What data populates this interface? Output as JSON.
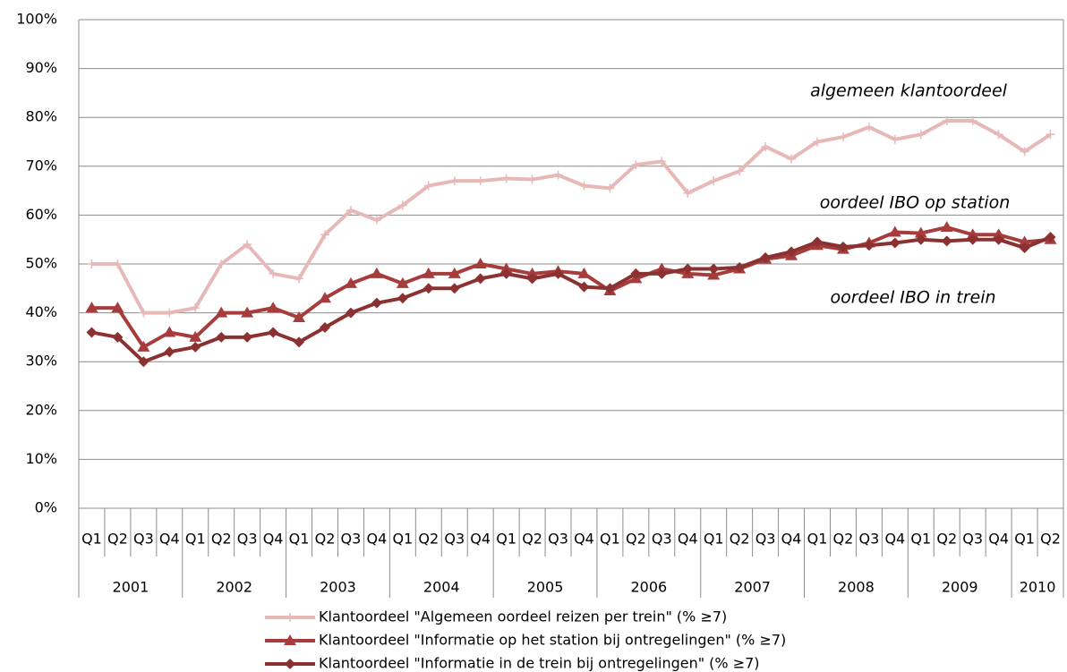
{
  "chart_data": {
    "type": "line",
    "category_groups": [
      {
        "label": "2001",
        "categories": [
          "Q1",
          "Q2",
          "Q3",
          "Q4"
        ]
      },
      {
        "label": "2002",
        "categories": [
          "Q1",
          "Q2",
          "Q3",
          "Q4"
        ]
      },
      {
        "label": "2003",
        "categories": [
          "Q1",
          "Q2",
          "Q3",
          "Q4"
        ]
      },
      {
        "label": "2004",
        "categories": [
          "Q1",
          "Q2",
          "Q3",
          "Q4"
        ]
      },
      {
        "label": "2005",
        "categories": [
          "Q1",
          "Q2",
          "Q3",
          "Q4"
        ]
      },
      {
        "label": "2006",
        "categories": [
          "Q1",
          "Q2",
          "Q3",
          "Q4"
        ]
      },
      {
        "label": "2007",
        "categories": [
          "Q1",
          "Q2",
          "Q3",
          "Q4"
        ]
      },
      {
        "label": "2008",
        "categories": [
          "Q1",
          "Q2",
          "Q3",
          "Q4"
        ]
      },
      {
        "label": "2009",
        "categories": [
          "Q1",
          "Q2",
          "Q3",
          "Q4"
        ]
      },
      {
        "label": "2010",
        "categories": [
          "Q1",
          "Q2"
        ]
      }
    ],
    "series": [
      {
        "name": "Klantoordeel \"Algemeen oordeel reizen per trein\" (% ≥7)",
        "color": "#e6b9b8",
        "marker": "plus",
        "values": [
          50,
          50,
          40,
          40,
          41,
          50,
          54,
          48,
          47,
          56,
          61,
          59,
          62,
          66,
          67,
          67,
          67.5,
          67.3,
          68.2,
          66,
          65.5,
          70.3,
          71,
          64.5,
          67,
          69,
          74,
          71.5,
          75,
          76,
          78,
          75.5,
          76.5,
          79.3,
          79.3,
          76.5,
          73,
          76.5
        ]
      },
      {
        "name": "Klantoordeel \"Informatie op het station bij ontregelingen\" (% ≥7)",
        "color": "#a63c3b",
        "marker": "triangle",
        "values": [
          41,
          41,
          33,
          36,
          35,
          40,
          40,
          41,
          39,
          43,
          46,
          48,
          46,
          48,
          48,
          50,
          49,
          48,
          48.5,
          48,
          44.5,
          47,
          49,
          48,
          47.7,
          49,
          51,
          51.7,
          53.8,
          53,
          54.3,
          56.5,
          56.3,
          57.5,
          56,
          56,
          54.5,
          55
        ]
      },
      {
        "name": "Klantoordeel \"Informatie in de trein bij ontregelingen\" (% ≥7)",
        "color": "#8c3131",
        "marker": "diamond",
        "values": [
          36,
          35,
          30,
          32,
          33,
          35,
          35,
          36,
          34,
          37,
          40,
          42,
          43,
          45,
          45,
          47,
          48,
          47,
          48,
          45.3,
          45,
          48,
          48,
          49,
          49,
          49.3,
          51.3,
          52.5,
          54.5,
          53.5,
          53.8,
          54.3,
          55,
          54.7,
          55,
          55,
          53.3,
          55.5
        ]
      }
    ],
    "annotations": [
      "algemeen klantoordeel",
      "oordeel IBO op station",
      "oordeel IBO in trein"
    ],
    "ylim": [
      0,
      100
    ],
    "yticks": [
      {
        "value": 0,
        "label": "0%"
      },
      {
        "value": 10,
        "label": "10%"
      },
      {
        "value": 20,
        "label": "20%"
      },
      {
        "value": 30,
        "label": "30%"
      },
      {
        "value": 40,
        "label": "40%"
      },
      {
        "value": 50,
        "label": "50%"
      },
      {
        "value": 60,
        "label": "60%"
      },
      {
        "value": 70,
        "label": "70%"
      },
      {
        "value": 80,
        "label": "80%"
      },
      {
        "value": 90,
        "label": "90%"
      },
      {
        "value": 100,
        "label": "100%"
      }
    ],
    "grid": true
  }
}
